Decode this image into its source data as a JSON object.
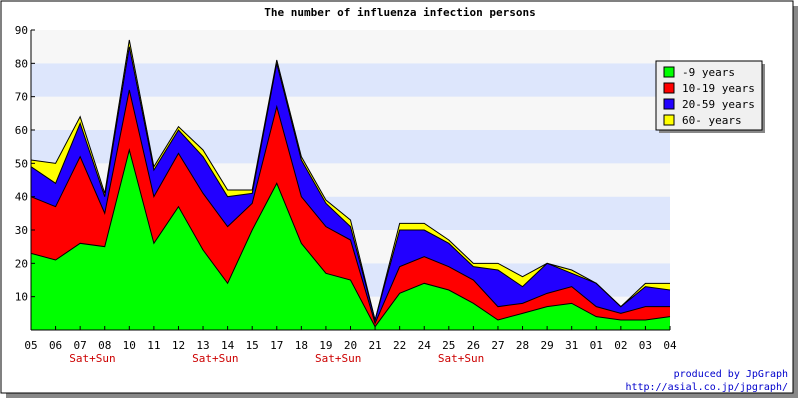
{
  "chart_data": {
    "type": "area",
    "stacked": true,
    "title": "The number of influenza infection persons",
    "xlabel": "",
    "ylabel": "",
    "ylim": [
      0,
      90
    ],
    "yticks": [
      10,
      20,
      30,
      40,
      50,
      60,
      70,
      80,
      90
    ],
    "grid": true,
    "legend_position": "top-right",
    "categories": [
      "05",
      "06",
      "07",
      "08",
      "10",
      "11",
      "12",
      "13",
      "14",
      "15",
      "17",
      "18",
      "19",
      "20",
      "21",
      "22",
      "24",
      "25",
      "26",
      "27",
      "28",
      "29",
      "31",
      "01",
      "02",
      "03",
      "04"
    ],
    "weekend_labels": [
      {
        "after_index": 2,
        "text": "Sat+Sun"
      },
      {
        "after_index": 7,
        "text": "Sat+Sun"
      },
      {
        "after_index": 12,
        "text": "Sat+Sun"
      },
      {
        "after_index": 17,
        "text": "Sat+Sun"
      }
    ],
    "series": [
      {
        "name": "-9 years",
        "color": "#00ff00",
        "values": [
          23,
          21,
          26,
          25,
          54,
          26,
          37,
          24,
          14,
          30,
          44,
          26,
          17,
          15,
          1,
          11,
          14,
          12,
          8,
          3,
          5,
          7,
          8,
          4,
          3,
          3,
          4
        ]
      },
      {
        "name": "10-19 years",
        "color": "#ff0000",
        "values": [
          17,
          16,
          26,
          10,
          18,
          14,
          16,
          17,
          17,
          8,
          23,
          14,
          14,
          12,
          1,
          8,
          8,
          7,
          7,
          4,
          3,
          4,
          5,
          3,
          2,
          4,
          3
        ]
      },
      {
        "name": "20-59 years",
        "color": "#2200ff",
        "values": [
          9,
          7,
          10,
          5,
          13,
          8,
          7,
          11,
          9,
          3,
          13,
          11,
          7,
          4,
          1,
          11,
          8,
          7,
          4,
          11,
          5,
          9,
          4,
          7,
          2,
          6,
          5
        ]
      },
      {
        "name": "60- years",
        "color": "#ffff00",
        "values": [
          2,
          6,
          2,
          1,
          2,
          1,
          1,
          2,
          2,
          1,
          1,
          1,
          1,
          2,
          0,
          2,
          2,
          1,
          1,
          2,
          3,
          0,
          1,
          0,
          0,
          1,
          2
        ]
      }
    ],
    "credit_line1": "produced by JpGraph",
    "credit_line2": "http://asial.co.jp/jpgraph/"
  }
}
